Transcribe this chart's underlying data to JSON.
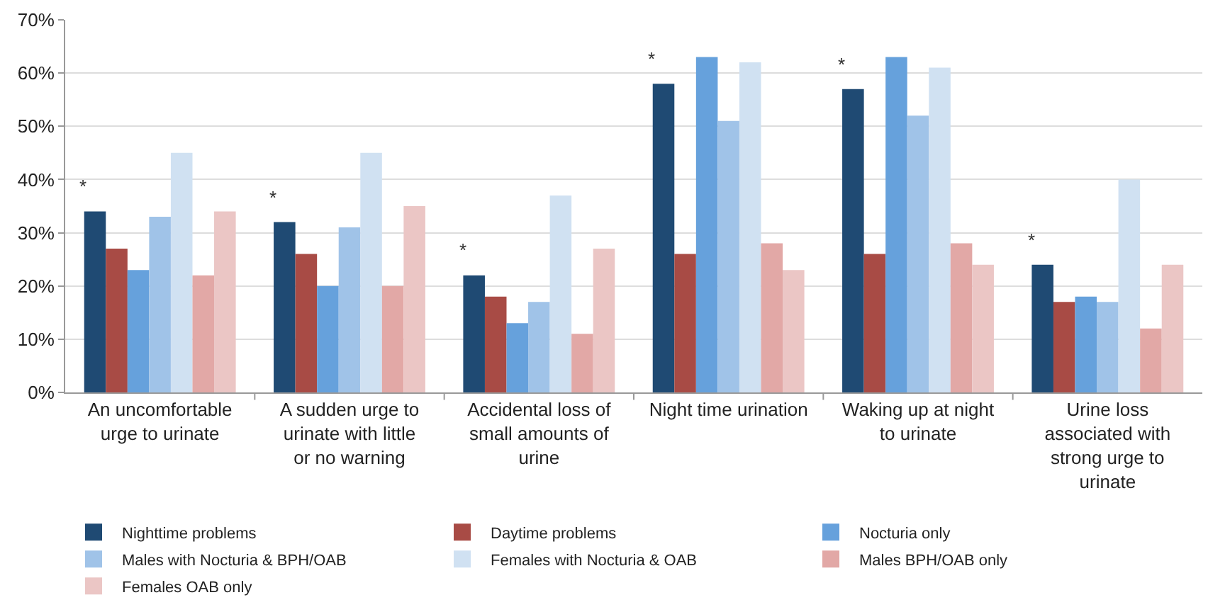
{
  "chart_data": {
    "type": "bar",
    "categories": [
      "An uncomfortable urge to urinate",
      "A sudden urge to urinate with little or no warning",
      "Accidental loss of small amounts of urine",
      "Night time urination",
      "Waking up at night to urinate",
      "Urine loss associated with strong urge to urinate"
    ],
    "series": [
      {
        "name": "Nighttime problems",
        "color": "#1f4a73",
        "values": [
          34,
          32,
          22,
          58,
          57,
          24
        ]
      },
      {
        "name": "Daytime problems",
        "color": "#a84b45",
        "values": [
          27,
          26,
          18,
          26,
          26,
          17
        ]
      },
      {
        "name": "Nocturia only",
        "color": "#66a1dc",
        "values": [
          23,
          20,
          13,
          63,
          63,
          18
        ]
      },
      {
        "name": "Males with Nocturia & BPH/OAB",
        "color": "#a0c3e8",
        "values": [
          33,
          31,
          17,
          51,
          52,
          17
        ]
      },
      {
        "name": "Females with Nocturia & OAB",
        "color": "#d0e1f2",
        "values": [
          45,
          45,
          37,
          62,
          61,
          40
        ]
      },
      {
        "name": "Males BPH/OAB only",
        "color": "#e2a8a6",
        "values": [
          22,
          20,
          11,
          28,
          28,
          12
        ]
      },
      {
        "name": "Females OAB only",
        "color": "#ebc6c5",
        "values": [
          34,
          35,
          27,
          23,
          24,
          24
        ]
      }
    ],
    "ylim": [
      0,
      70
    ],
    "yticks": [
      {
        "value": 0,
        "label": "0%"
      },
      {
        "value": 10,
        "label": "10%"
      },
      {
        "value": 20,
        "label": "20%"
      },
      {
        "value": 30,
        "label": "30%"
      },
      {
        "value": 40,
        "label": "40%"
      },
      {
        "value": 50,
        "label": "50%"
      },
      {
        "value": 60,
        "label": "60%"
      },
      {
        "value": 70,
        "label": "70%"
      }
    ],
    "grid": "y",
    "legend": "bottom",
    "annotations": [
      "*",
      "*",
      "*",
      "*",
      "*",
      "*"
    ]
  }
}
